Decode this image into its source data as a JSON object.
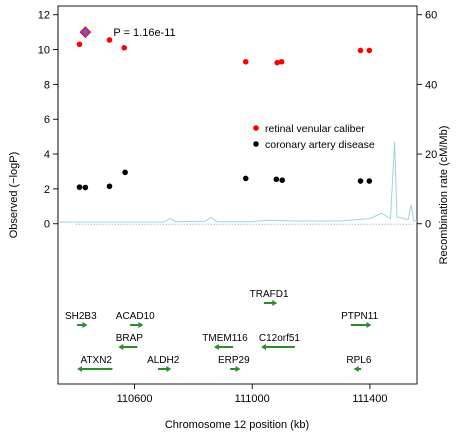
{
  "chart_data": {
    "type": "scatter",
    "xlabel": "Chromosome 12 position (kb)",
    "ylabel": "Observed (−logP)",
    "y2label": "Recombination rate (cM/Mb)",
    "xlim": [
      110340,
      111560
    ],
    "ylim": [
      -9.2,
      12.5
    ],
    "y2lim": [
      0,
      62.5
    ],
    "x_ticks": [
      110600,
      111000,
      111400
    ],
    "y_ticks": [
      0,
      2,
      4,
      6,
      8,
      10,
      12
    ],
    "y2_ticks": [
      0,
      20,
      40,
      60
    ],
    "grid": false,
    "legend_position": "right",
    "annotation": {
      "text": "P = 1.16e-11",
      "x": 110433,
      "y": 11.0
    },
    "lead_snp": {
      "x": 110433,
      "y": 11.0,
      "color": "#6a5acd"
    },
    "series": [
      {
        "name": "retinal venular caliber",
        "color": "#ff0000",
        "points": [
          {
            "x": 110413,
            "y": 10.3
          },
          {
            "x": 110515,
            "y": 10.55
          },
          {
            "x": 110565,
            "y": 10.1
          },
          {
            "x": 110978,
            "y": 9.3
          },
          {
            "x": 111085,
            "y": 9.25
          },
          {
            "x": 111100,
            "y": 9.3
          },
          {
            "x": 111368,
            "y": 9.95
          },
          {
            "x": 111398,
            "y": 9.95
          }
        ]
      },
      {
        "name": "coronary artery disease",
        "color": "#000000",
        "points": [
          {
            "x": 110413,
            "y": 2.1
          },
          {
            "x": 110433,
            "y": 2.08
          },
          {
            "x": 110515,
            "y": 2.15
          },
          {
            "x": 110568,
            "y": 2.95
          },
          {
            "x": 110978,
            "y": 2.6
          },
          {
            "x": 111082,
            "y": 2.55
          },
          {
            "x": 111102,
            "y": 2.5
          },
          {
            "x": 111368,
            "y": 2.45
          },
          {
            "x": 111398,
            "y": 2.45
          }
        ]
      }
    ],
    "recombination": {
      "color": "#9ed4e0",
      "points": [
        {
          "x": 110340,
          "y": 0.5
        },
        {
          "x": 110700,
          "y": 0.5
        },
        {
          "x": 110720,
          "y": 1.5
        },
        {
          "x": 110740,
          "y": 0.6
        },
        {
          "x": 110840,
          "y": 0.7
        },
        {
          "x": 110860,
          "y": 1.8
        },
        {
          "x": 110880,
          "y": 0.6
        },
        {
          "x": 111000,
          "y": 0.6
        },
        {
          "x": 111050,
          "y": 1.0
        },
        {
          "x": 111150,
          "y": 0.8
        },
        {
          "x": 111300,
          "y": 0.8
        },
        {
          "x": 111400,
          "y": 1.5
        },
        {
          "x": 111440,
          "y": 3.0
        },
        {
          "x": 111470,
          "y": 1.5
        },
        {
          "x": 111484,
          "y": 23.5
        },
        {
          "x": 111492,
          "y": 2.0
        },
        {
          "x": 111530,
          "y": 1.2
        },
        {
          "x": 111540,
          "y": 5.5
        },
        {
          "x": 111548,
          "y": 1.0
        },
        {
          "x": 111560,
          "y": 0.8
        }
      ]
    },
    "genes": [
      {
        "name": "TRAFD1",
        "start": 111040,
        "end": 111075,
        "strand": "+",
        "row": 0
      },
      {
        "name": "SH2B3",
        "start": 110405,
        "end": 110430,
        "strand": "+",
        "row": 1
      },
      {
        "name": "ACAD10",
        "start": 110585,
        "end": 110620,
        "strand": "+",
        "row": 1
      },
      {
        "name": "PTPN11",
        "start": 111335,
        "end": 111395,
        "strand": "+",
        "row": 1
      },
      {
        "name": "BRAP",
        "start": 110555,
        "end": 110610,
        "strand": "-",
        "row": 2
      },
      {
        "name": "TMEM116",
        "start": 110880,
        "end": 110935,
        "strand": "-",
        "row": 2
      },
      {
        "name": "C12orf51",
        "start": 111040,
        "end": 111145,
        "strand": "-",
        "row": 2
      },
      {
        "name": "ATXN2",
        "start": 110415,
        "end": 110525,
        "strand": "-",
        "row": 3
      },
      {
        "name": "ALDH2",
        "start": 110680,
        "end": 110715,
        "strand": "+",
        "row": 3
      },
      {
        "name": "ERP29",
        "start": 110925,
        "end": 110950,
        "strand": "+",
        "row": 3
      },
      {
        "name": "RPL6",
        "start": 111355,
        "end": 111370,
        "strand": "-",
        "row": 3
      }
    ]
  }
}
